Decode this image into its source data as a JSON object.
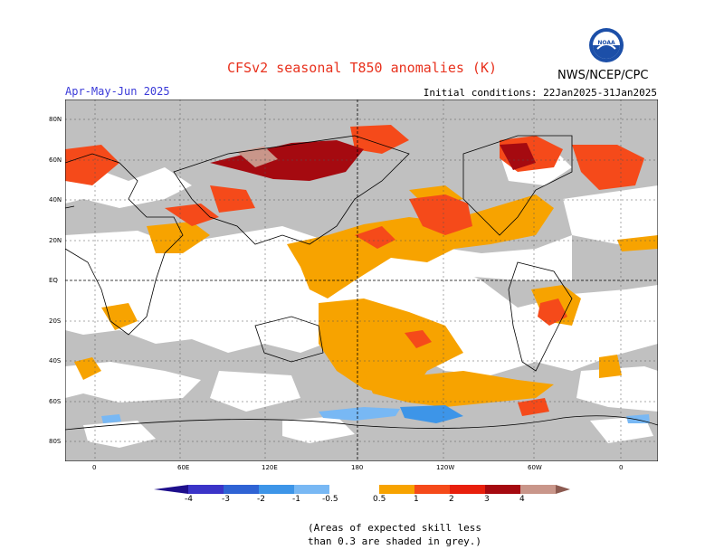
{
  "header": {
    "title": "CFSv2 seasonal T850 anomalies (K)",
    "season": "Apr-May-Jun 2025",
    "initial_conditions": "Initial conditions: 22Jan2025-31Jan2025",
    "agency": "NWS/NCEP/CPC",
    "logo_text": "NOAA"
  },
  "axes": {
    "lat_labels": [
      "80N",
      "60N",
      "40N",
      "20N",
      "EQ",
      "20S",
      "40S",
      "60S",
      "80S"
    ],
    "lon_labels": [
      "0",
      "60E",
      "120E",
      "180",
      "120W",
      "60W",
      "0"
    ]
  },
  "legend": {
    "labels": [
      "-4",
      "-3",
      "-2",
      "-1",
      "-0.5",
      "0.5",
      "1",
      "2",
      "3",
      "4"
    ],
    "colors": {
      "lt_-4": "#1e0f8c",
      "-4_-3": "#3b34c8",
      "-3_-2": "#2f63d4",
      "-2_-1": "#3d95e8",
      "-1_-0.5": "#78b8f4",
      "neutral": "#ffffff",
      "0.5_1": "#f7a300",
      "1_2": "#f54a1a",
      "2_3": "#e81f0c",
      "3_4": "#a50a10",
      "4_plus": "#c9968a",
      "gt_4": "#8c5a50",
      "low_skill": "#c0c0c0"
    }
  },
  "note": {
    "line1": "(Areas of expected skill less",
    "line2": "than 0.3 are shaded in grey.)"
  }
}
